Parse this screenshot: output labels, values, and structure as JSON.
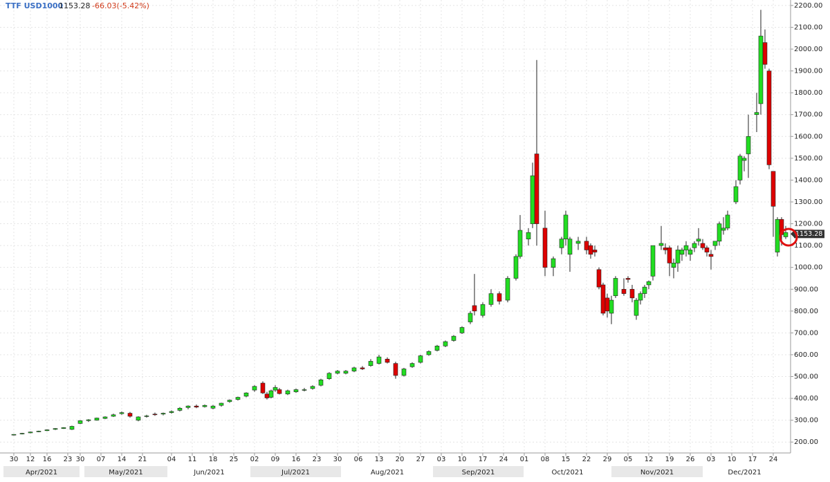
{
  "chart_data": {
    "type": "candlestick",
    "symbol": "TTF USD1000",
    "last_price": 1153.28,
    "change": "-66.03(-5.42%)",
    "up_color": "#22dd22",
    "down_color": "#dd0000",
    "grid": true,
    "ylim": [
      150,
      2225
    ],
    "xlim": [
      -3.33,
      187.17
    ],
    "yticks": [
      {
        "value": 200,
        "label": "200.00"
      },
      {
        "value": 300,
        "label": "300.00"
      },
      {
        "value": 400,
        "label": "400.00"
      },
      {
        "value": 500,
        "label": "500.00"
      },
      {
        "value": 600,
        "label": "600.00"
      },
      {
        "value": 700,
        "label": "700.00"
      },
      {
        "value": 800,
        "label": "800.00"
      },
      {
        "value": 900,
        "label": "900.00"
      },
      {
        "value": 1000,
        "label": "1000.00"
      },
      {
        "value": 1100,
        "label": "1100.00"
      },
      {
        "value": 1200,
        "label": "1200.00"
      },
      {
        "value": 1300,
        "label": "1300.00"
      },
      {
        "value": 1400,
        "label": "1400.00"
      },
      {
        "value": 1500,
        "label": "1500.00"
      },
      {
        "value": 1600,
        "label": "1600.00"
      },
      {
        "value": 1700,
        "label": "1700.00"
      },
      {
        "value": 1800,
        "label": "1800.00"
      },
      {
        "value": 1900,
        "label": "1900.00"
      },
      {
        "value": 2000,
        "label": "2000.00"
      },
      {
        "value": 2100,
        "label": "2100.00"
      },
      {
        "value": 2200,
        "label": "2200.00"
      }
    ],
    "xticks": [
      {
        "value": 0,
        "label": "30"
      },
      {
        "value": 4,
        "label": "12"
      },
      {
        "value": 8,
        "label": "16"
      },
      {
        "value": 13,
        "label": "23"
      },
      {
        "value": 16,
        "label": "30"
      },
      {
        "value": 21,
        "label": "07"
      },
      {
        "value": 26,
        "label": "14"
      },
      {
        "value": 31,
        "label": "21"
      },
      {
        "value": 38,
        "label": "04"
      },
      {
        "value": 43,
        "label": "11"
      },
      {
        "value": 48,
        "label": "18"
      },
      {
        "value": 53,
        "label": "25"
      },
      {
        "value": 58,
        "label": "02"
      },
      {
        "value": 63,
        "label": "09"
      },
      {
        "value": 68,
        "label": "16"
      },
      {
        "value": 73,
        "label": "23"
      },
      {
        "value": 78,
        "label": "30"
      },
      {
        "value": 83,
        "label": "06"
      },
      {
        "value": 88,
        "label": "13"
      },
      {
        "value": 93,
        "label": "20"
      },
      {
        "value": 98,
        "label": "27"
      },
      {
        "value": 103,
        "label": "03"
      },
      {
        "value": 108,
        "label": "10"
      },
      {
        "value": 113,
        "label": "17"
      },
      {
        "value": 118,
        "label": "24"
      },
      {
        "value": 123,
        "label": "01"
      },
      {
        "value": 128,
        "label": "08"
      },
      {
        "value": 133,
        "label": "15"
      },
      {
        "value": 138,
        "label": "22"
      },
      {
        "value": 143,
        "label": "29"
      },
      {
        "value": 148,
        "label": "05"
      },
      {
        "value": 153,
        "label": "12"
      },
      {
        "value": 158,
        "label": "19"
      },
      {
        "value": 163,
        "label": "26"
      },
      {
        "value": 168,
        "label": "03"
      },
      {
        "value": 173,
        "label": "10"
      },
      {
        "value": 178,
        "label": "17"
      },
      {
        "value": 183,
        "label": "24"
      }
    ],
    "months": [
      "Apr/2021",
      "May/2021",
      "Jun/2021",
      "Jul/2021",
      "Aug/2021",
      "Sep/2021",
      "Oct/2021",
      "Nov/2021",
      "Dec/2021"
    ],
    "x": [
      0,
      2,
      4,
      6,
      8,
      10,
      12,
      14,
      16,
      18,
      20,
      22,
      24,
      26,
      28,
      30,
      32,
      34,
      36,
      38,
      40,
      42,
      44,
      46,
      48,
      50,
      52,
      54,
      56,
      58,
      60,
      61,
      62,
      63,
      64,
      66,
      68,
      70,
      72,
      74,
      76,
      78,
      80,
      82,
      84,
      86,
      88,
      90,
      92,
      94,
      96,
      98,
      100,
      102,
      104,
      106,
      108,
      110,
      111,
      113,
      115,
      117,
      119,
      121,
      122,
      124,
      125,
      126,
      128,
      130,
      132,
      133,
      134,
      136,
      138,
      139,
      140,
      141,
      142,
      143,
      144,
      145,
      147,
      148,
      149,
      150,
      151,
      152,
      153,
      154,
      156,
      157,
      158,
      159,
      160,
      161,
      162,
      163,
      164,
      165,
      166,
      167,
      168,
      169,
      170,
      171,
      172,
      174,
      175,
      176,
      177,
      179,
      180,
      181,
      182,
      183,
      184,
      185,
      186
    ],
    "open": [
      232,
      238,
      242,
      248,
      252,
      258,
      262,
      258,
      285,
      298,
      300,
      308,
      318,
      330,
      332,
      300,
      318,
      328,
      328,
      335,
      345,
      358,
      365,
      362,
      355,
      368,
      385,
      395,
      410,
      438,
      470,
      420,
      405,
      438,
      440,
      420,
      430,
      438,
      445,
      460,
      490,
      515,
      515,
      525,
      540,
      550,
      560,
      580,
      560,
      505,
      545,
      565,
      600,
      620,
      640,
      665,
      700,
      750,
      825,
      780,
      830,
      880,
      850,
      950,
      1050,
      1130,
      1200,
      1520,
      1180,
      1000,
      1090,
      1130,
      1060,
      1110,
      1120,
      1100,
      1080,
      990,
      920,
      860,
      790,
      870,
      900,
      950,
      900,
      780,
      850,
      880,
      920,
      960,
      1100,
      1090,
      1090,
      1000,
      1020,
      1060,
      1080,
      1060,
      1090,
      1120,
      1110,
      1090,
      1060,
      1100,
      1120,
      1170,
      1180,
      1300,
      1400,
      1490,
      1520,
      1700,
      1750,
      2030,
      1900,
      1440,
      1070,
      1220,
      1140
    ],
    "high": [
      236,
      242,
      248,
      252,
      258,
      264,
      268,
      275,
      300,
      305,
      312,
      318,
      330,
      340,
      338,
      318,
      325,
      335,
      335,
      345,
      360,
      368,
      372,
      372,
      370,
      380,
      395,
      408,
      428,
      460,
      478,
      430,
      440,
      460,
      448,
      440,
      445,
      448,
      460,
      490,
      520,
      530,
      530,
      545,
      548,
      580,
      600,
      588,
      568,
      540,
      565,
      600,
      620,
      645,
      665,
      690,
      730,
      800,
      970,
      840,
      900,
      890,
      960,
      1060,
      1240,
      1180,
      1480,
      1950,
      1260,
      1050,
      1140,
      1260,
      1140,
      1140,
      1140,
      1110,
      1100,
      1000,
      930,
      880,
      870,
      960,
      950,
      960,
      920,
      860,
      890,
      920,
      940,
      1100,
      1190,
      1110,
      1100,
      1040,
      1100,
      1090,
      1120,
      1090,
      1120,
      1180,
      1130,
      1100,
      1080,
      1120,
      1210,
      1230,
      1260,
      1400,
      1520,
      1510,
      1700,
      1800,
      2180,
      2090,
      1910,
      1440,
      1230,
      1230,
      1190
    ],
    "low": [
      230,
      235,
      240,
      245,
      250,
      255,
      260,
      255,
      282,
      292,
      298,
      305,
      315,
      325,
      312,
      295,
      312,
      320,
      322,
      330,
      340,
      350,
      355,
      358,
      350,
      362,
      380,
      390,
      405,
      430,
      420,
      395,
      400,
      430,
      418,
      415,
      425,
      432,
      440,
      455,
      485,
      510,
      510,
      520,
      530,
      545,
      555,
      560,
      490,
      500,
      540,
      560,
      595,
      615,
      635,
      660,
      695,
      740,
      780,
      770,
      820,
      830,
      840,
      940,
      1040,
      1100,
      1180,
      1100,
      960,
      960,
      1060,
      1100,
      980,
      1080,
      1060,
      1040,
      1050,
      900,
      780,
      770,
      740,
      860,
      870,
      930,
      840,
      760,
      830,
      860,
      900,
      940,
      1080,
      1060,
      960,
      950,
      980,
      1030,
      1050,
      1030,
      1070,
      1100,
      1080,
      1050,
      990,
      1080,
      1100,
      1150,
      1170,
      1290,
      1380,
      1440,
      1410,
      1620,
      1700,
      1910,
      1450,
      1140,
      1050,
      1100,
      1130
    ],
    "close": [
      235,
      240,
      246,
      250,
      256,
      262,
      266,
      272,
      298,
      302,
      310,
      315,
      325,
      335,
      318,
      315,
      320,
      325,
      332,
      340,
      355,
      365,
      360,
      368,
      365,
      378,
      392,
      405,
      425,
      455,
      425,
      402,
      435,
      450,
      422,
      435,
      440,
      440,
      455,
      485,
      515,
      525,
      525,
      540,
      535,
      570,
      590,
      565,
      505,
      535,
      560,
      595,
      615,
      640,
      660,
      685,
      725,
      790,
      800,
      830,
      880,
      845,
      950,
      1050,
      1170,
      1160,
      1420,
      1200,
      1000,
      1040,
      1130,
      1240,
      1130,
      1120,
      1080,
      1060,
      1070,
      910,
      790,
      800,
      850,
      950,
      880,
      945,
      860,
      850,
      880,
      910,
      935,
      1100,
      1110,
      1080,
      1020,
      1020,
      1080,
      1080,
      1100,
      1080,
      1110,
      1130,
      1090,
      1070,
      1050,
      1120,
      1200,
      1180,
      1240,
      1370,
      1510,
      1500,
      1600,
      1710,
      2060,
      1930,
      1470,
      1280,
      1220,
      1150,
      1160
    ]
  }
}
